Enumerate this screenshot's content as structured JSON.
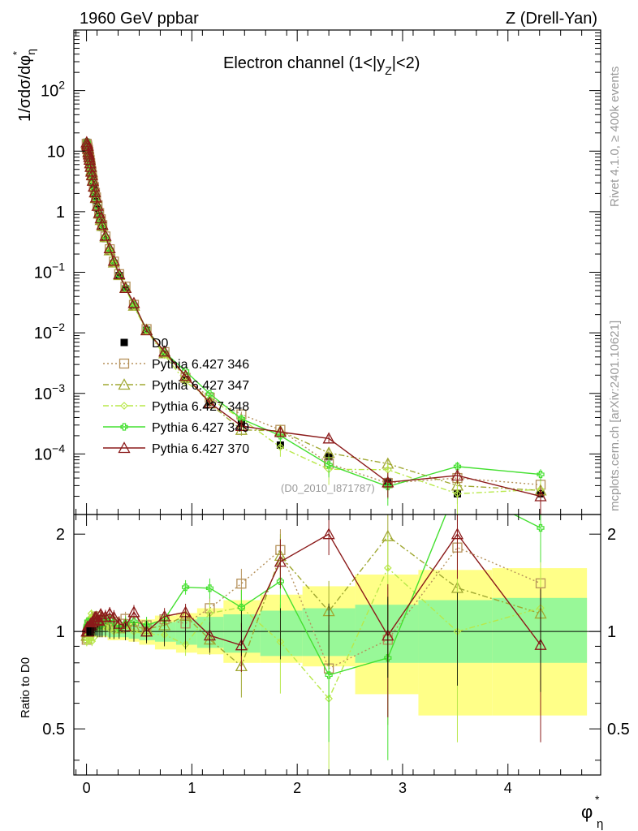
{
  "header": {
    "left_title": "1960 GeV ppbar",
    "right_title": "Z (Drell-Yan)"
  },
  "side_text": {
    "top": "Rivet 4.1.0, ≥ 400k events",
    "bottom": "mcplots.cern.ch [arXiv:2401.10621]"
  },
  "analysis_label": "(D0_2010_I871787)",
  "chart_data": {
    "type": "line",
    "title": "Electron channel (1<|y_Z|<2)",
    "xlabel": "φ*_η",
    "ylabel": "1/σdσ/dφ*_η",
    "yscale": "log",
    "xlim": [
      -0.12,
      4.88
    ],
    "ylim": [
      1e-05,
      1000
    ],
    "grid": false,
    "legend_position": "middle-left",
    "x_ticks": [
      "0",
      "1",
      "2",
      "3",
      "4"
    ],
    "y_ticks": [
      "10^-4",
      "10^-3",
      "10^-2",
      "10^-1",
      "1",
      "10",
      "10^2"
    ],
    "x": [
      0.002,
      0.006,
      0.01,
      0.014,
      0.018,
      0.022,
      0.026,
      0.03,
      0.035,
      0.04,
      0.046,
      0.052,
      0.06,
      0.07,
      0.08,
      0.09,
      0.105,
      0.12,
      0.135,
      0.15,
      0.18,
      0.22,
      0.26,
      0.31,
      0.37,
      0.45,
      0.57,
      0.74,
      0.94,
      1.17,
      1.47,
      1.84,
      2.3,
      2.86,
      3.52,
      4.31
    ],
    "reference": {
      "name": "D0",
      "values": [
        14.0,
        13.0,
        11.8,
        10.7,
        9.6,
        8.6,
        7.7,
        6.9,
        6.0,
        5.2,
        4.4,
        3.75,
        3.05,
        2.4,
        1.9,
        1.55,
        1.15,
        0.88,
        0.69,
        0.55,
        0.36,
        0.22,
        0.14,
        0.088,
        0.053,
        0.027,
        0.011,
        0.0044,
        0.0017,
        0.00072,
        0.00032,
        0.00014,
        9e-05,
        3.5e-05,
        2.2e-05,
        2.2e-05
      ],
      "rel_err": [
        0.03,
        0.03,
        0.03,
        0.03,
        0.03,
        0.03,
        0.03,
        0.03,
        0.03,
        0.03,
        0.03,
        0.03,
        0.03,
        0.03,
        0.03,
        0.03,
        0.04,
        0.04,
        0.04,
        0.04,
        0.04,
        0.05,
        0.05,
        0.05,
        0.06,
        0.07,
        0.08,
        0.1,
        0.12,
        0.14,
        0.16,
        0.18,
        0.22,
        0.28,
        0.32,
        0.35
      ]
    },
    "series": [
      {
        "name": "Pythia 6.427 346",
        "color": "#b5915a",
        "style": "dotted",
        "marker": "square-open",
        "values": [
          13.2,
          12.4,
          11.5,
          10.6,
          9.7,
          8.8,
          7.9,
          7.2,
          6.3,
          5.5,
          4.7,
          4.0,
          3.25,
          2.55,
          2.05,
          1.72,
          1.28,
          0.95,
          0.75,
          0.6,
          0.39,
          0.24,
          0.15,
          0.093,
          0.058,
          0.029,
          0.0115,
          0.0048,
          0.0018,
          0.00085,
          0.00045,
          0.00025,
          6.92e-05,
          3.3e-05,
          4e-05,
          3.1e-05
        ],
        "errors": [
          0.4,
          0.4,
          0.35,
          0.3,
          0.3,
          0.25,
          0.25,
          0.2,
          0.2,
          0.2,
          0.15,
          0.12,
          0.1,
          0.08,
          0.07,
          0.06,
          0.05,
          0.04,
          0.03,
          0.025,
          0.02,
          0.012,
          0.008,
          0.005,
          0.003,
          0.0016,
          0.0007,
          0.0003,
          0.00012,
          7e-05,
          5e-05,
          4e-05,
          2.5e-05,
          1.5e-05,
          1.2e-05,
          1e-05
        ]
      },
      {
        "name": "Pythia 6.427 347",
        "color": "#a0a832",
        "style": "dashdot",
        "marker": "triangle-open",
        "values": [
          13.6,
          12.6,
          11.7,
          10.9,
          9.9,
          9.0,
          8.1,
          7.3,
          6.4,
          5.6,
          4.8,
          4.1,
          3.3,
          2.6,
          2.08,
          1.68,
          1.25,
          0.93,
          0.73,
          0.58,
          0.38,
          0.23,
          0.145,
          0.09,
          0.056,
          0.028,
          0.0112,
          0.0046,
          0.0019,
          0.00068,
          0.00025,
          0.00024,
          0.000104,
          6.9e-05,
          3e-05,
          2.5e-05
        ],
        "errors": [
          0.4,
          0.4,
          0.35,
          0.3,
          0.3,
          0.25,
          0.25,
          0.2,
          0.2,
          0.2,
          0.15,
          0.12,
          0.1,
          0.08,
          0.07,
          0.06,
          0.05,
          0.04,
          0.03,
          0.025,
          0.02,
          0.012,
          0.008,
          0.005,
          0.003,
          0.0016,
          0.0007,
          0.0003,
          0.00012,
          7e-05,
          5e-05,
          4e-05,
          2.5e-05,
          1.5e-05,
          1.2e-05,
          1e-05
        ]
      },
      {
        "name": "Pythia 6.427 348",
        "color": "#b8e84a",
        "style": "dashdot",
        "marker": "diamond-open",
        "values": [
          13.0,
          12.7,
          11.2,
          11.3,
          10.1,
          8.4,
          8.4,
          6.5,
          6.6,
          5.0,
          5.0,
          3.5,
          3.2,
          2.3,
          2.0,
          1.62,
          1.2,
          0.91,
          0.72,
          0.57,
          0.37,
          0.225,
          0.14,
          0.09,
          0.055,
          0.027,
          0.0108,
          0.0043,
          0.00155,
          0.00082,
          0.00038,
          0.00013,
          5.58e-05,
          5.5e-05,
          2.2e-05,
          2.6e-05
        ],
        "errors": [
          0.4,
          0.4,
          0.35,
          0.3,
          0.3,
          0.25,
          0.25,
          0.2,
          0.2,
          0.2,
          0.15,
          0.12,
          0.1,
          0.08,
          0.07,
          0.06,
          0.05,
          0.04,
          0.03,
          0.025,
          0.02,
          0.012,
          0.008,
          0.005,
          0.003,
          0.0016,
          0.0007,
          0.0003,
          0.00012,
          7e-05,
          5e-05,
          4e-05,
          2.5e-05,
          1.5e-05,
          1.2e-05,
          1e-05
        ]
      },
      {
        "name": "Pythia 6.427 349",
        "color": "#44e030",
        "style": "solid",
        "marker": "plus-open",
        "values": [
          14.3,
          13.5,
          12.3,
          11.5,
          10.0,
          9.1,
          8.0,
          7.1,
          6.3,
          5.4,
          4.6,
          4.0,
          3.1,
          2.55,
          2.0,
          1.65,
          1.22,
          0.92,
          0.72,
          0.6,
          0.39,
          0.24,
          0.15,
          0.09,
          0.056,
          0.029,
          0.0115,
          0.0048,
          0.00233,
          0.00098,
          0.00038,
          0.0002,
          6.6e-05,
          2.9e-05,
          6.2e-05,
          4.6e-05
        ],
        "errors": [
          0.4,
          0.4,
          0.35,
          0.3,
          0.3,
          0.25,
          0.25,
          0.2,
          0.2,
          0.2,
          0.15,
          0.12,
          0.1,
          0.08,
          0.07,
          0.06,
          0.05,
          0.04,
          0.03,
          0.025,
          0.02,
          0.012,
          0.008,
          0.005,
          0.003,
          0.0016,
          0.0007,
          0.0003,
          0.00012,
          7e-05,
          5e-05,
          4e-05,
          2.5e-05,
          1.5e-05,
          1.2e-05,
          1e-05
        ]
      },
      {
        "name": "Pythia 6.427 370",
        "color": "#8b1a1a",
        "style": "solid",
        "marker": "triangle-open",
        "values": [
          14.0,
          13.0,
          12.2,
          11.0,
          9.6,
          8.8,
          8.0,
          7.2,
          6.3,
          5.5,
          4.6,
          4.0,
          3.25,
          2.6,
          2.1,
          1.72,
          1.25,
          0.95,
          0.78,
          0.61,
          0.4,
          0.25,
          0.155,
          0.093,
          0.055,
          0.031,
          0.011,
          0.0049,
          0.00195,
          0.0007,
          0.00029,
          0.00023,
          0.00018,
          3.4e-05,
          4.4e-05,
          2e-05
        ],
        "errors": [
          0.4,
          0.4,
          0.35,
          0.3,
          0.3,
          0.25,
          0.25,
          0.2,
          0.2,
          0.2,
          0.15,
          0.12,
          0.1,
          0.08,
          0.07,
          0.06,
          0.05,
          0.04,
          0.03,
          0.025,
          0.02,
          0.012,
          0.008,
          0.005,
          0.003,
          0.0016,
          0.0007,
          0.0003,
          0.00012,
          7e-05,
          5e-05,
          4e-05,
          2.5e-05,
          1.5e-05,
          1.2e-05,
          1e-05
        ]
      }
    ],
    "ratio_panel": {
      "ylabel": "Ratio to D0",
      "ylim": [
        0.36,
        2.3
      ],
      "y_ticks_left": [
        "0.5",
        "1",
        "2"
      ],
      "y_ticks_right": [
        "0.5",
        "1",
        "2"
      ],
      "band_edges": [
        0,
        0.2,
        0.4,
        0.5,
        0.65,
        0.85,
        1.05,
        1.3,
        1.65,
        2.05,
        2.55,
        3.15,
        3.85,
        4.75
      ],
      "inner_band": [
        {
          "lo": 0.97,
          "hi": 1.03
        },
        {
          "lo": 0.96,
          "hi": 1.04
        },
        {
          "lo": 0.95,
          "hi": 1.05
        },
        {
          "lo": 0.94,
          "hi": 1.06
        },
        {
          "lo": 0.93,
          "hi": 1.07
        },
        {
          "lo": 0.91,
          "hi": 1.09
        },
        {
          "lo": 0.89,
          "hi": 1.11
        },
        {
          "lo": 0.86,
          "hi": 1.13
        },
        {
          "lo": 0.84,
          "hi": 1.16
        },
        {
          "lo": 0.84,
          "hi": 1.18
        },
        {
          "lo": 0.8,
          "hi": 1.21
        },
        {
          "lo": 0.8,
          "hi": 1.25
        },
        {
          "lo": 0.8,
          "hi": 1.27
        }
      ],
      "outer_band": [
        {
          "lo": 0.96,
          "hi": 1.04
        },
        {
          "lo": 0.94,
          "hi": 1.06
        },
        {
          "lo": 0.93,
          "hi": 1.07
        },
        {
          "lo": 0.91,
          "hi": 1.09
        },
        {
          "lo": 0.88,
          "hi": 1.12
        },
        {
          "lo": 0.86,
          "hi": 1.14
        },
        {
          "lo": 0.85,
          "hi": 1.18
        },
        {
          "lo": 0.8,
          "hi": 1.25
        },
        {
          "lo": 0.8,
          "hi": 1.3
        },
        {
          "lo": 0.78,
          "hi": 1.38
        },
        {
          "lo": 0.64,
          "hi": 1.5
        },
        {
          "lo": 0.55,
          "hi": 1.55
        },
        {
          "lo": 0.55,
          "hi": 1.57
        }
      ]
    }
  }
}
